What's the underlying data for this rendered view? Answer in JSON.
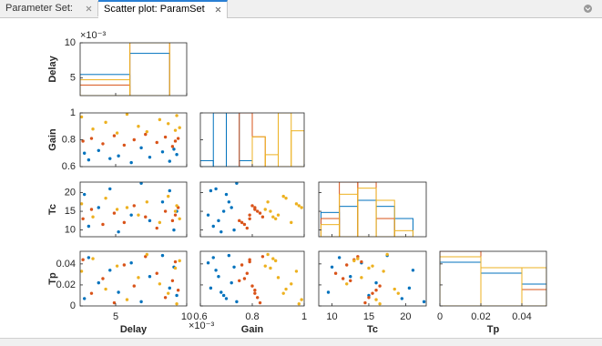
{
  "tabs": [
    "Parameter Set:",
    "Scatter plot: ParamSet"
  ],
  "chart_data": {
    "type": "scatter-matrix",
    "variables": [
      {
        "label": "Delay",
        "lim": [
          0.0025,
          0.01
        ],
        "ticks": [
          {
            "value": 0.005,
            "label": "5"
          },
          {
            "value": 0.01,
            "label": "10"
          }
        ],
        "exponent": "×10⁻³",
        "hist": {
          "bins": [
            0.0025,
            0.006,
            0.0088
          ],
          "counts": [
            [
              4,
              8
            ],
            [
              2,
              10
            ],
            [
              3,
              10
            ]
          ]
        }
      },
      {
        "label": "Gain",
        "lim": [
          0.6,
          1
        ],
        "ticks": [
          0.6,
          0.8,
          1
        ],
        "hist": {
          "bins": [
            0.6,
            0.65,
            0.7,
            0.75,
            0.8,
            0.85,
            0.9,
            0.95,
            1
          ],
          "counts": [
            [
              1,
              9,
              9,
              1,
              0,
              0,
              0,
              0
            ],
            [
              0,
              0,
              0,
              9,
              5,
              0,
              0,
              0
            ],
            [
              0,
              0,
              0,
              0,
              5,
              2,
              9,
              6
            ]
          ]
        }
      },
      {
        "label": "Tc",
        "lim": [
          8.2,
          22.8
        ],
        "ticks": [
          10,
          15,
          20
        ],
        "hist": {
          "bins": [
            8.5,
            11,
            13.5,
            16,
            18.5,
            21
          ],
          "counts": [
            [
              4,
              5,
              6,
              5,
              3
            ],
            [
              3,
              9,
              9,
              3,
              0
            ],
            [
              2,
              7,
              8,
              6,
              1
            ]
          ]
        }
      },
      {
        "label": "Tp",
        "lim": [
          0,
          0.052
        ],
        "ticks": [
          0,
          0.02,
          0.04
        ],
        "hist": {
          "bins": [
            0,
            0.02,
            0.04,
            0.052
          ],
          "counts": [
            [
              8,
              6,
              4
            ],
            [
              10,
              7,
              3
            ],
            [
              9,
              7,
              7
            ]
          ]
        }
      }
    ],
    "series": [
      {
        "color": "#0072BD",
        "values": [
          [
            0.0028,
            0.0031,
            0.0038,
            0.0046,
            0.0052,
            0.0061,
            0.0068,
            0.0074,
            0.0083,
            0.0088,
            0.0091,
            0.0093
          ],
          [
            0.7,
            0.65,
            0.72,
            0.66,
            0.68,
            0.63,
            0.74,
            0.67,
            0.71,
            0.64,
            0.73,
            0.69
          ],
          [
            19.5,
            11,
            16,
            21,
            9.5,
            14,
            22.5,
            12.5,
            17.5,
            20.5,
            10,
            15
          ],
          [
            0.007,
            0.046,
            0.022,
            0.034,
            0.013,
            0.041,
            0.004,
            0.028,
            0.048,
            0.017,
            0.037,
            0.01
          ]
        ]
      },
      {
        "color": "#D95319",
        "values": [
          [
            0.0027,
            0.0033,
            0.0041,
            0.0049,
            0.0056,
            0.0063,
            0.0071,
            0.0079,
            0.0085,
            0.009,
            0.0092,
            0.0094
          ],
          [
            0.79,
            0.81,
            0.77,
            0.83,
            0.76,
            0.8,
            0.84,
            0.78,
            0.82,
            0.75,
            0.79,
            0.81
          ],
          [
            13,
            15.5,
            11.5,
            14.5,
            12,
            16.5,
            13.5,
            10.5,
            15,
            12.5,
            14,
            16
          ],
          [
            0.044,
            0.012,
            0.026,
            0.003,
            0.039,
            0.019,
            0.047,
            0.031,
            0.008,
            0.024,
            0.042,
            0.015
          ]
        ]
      },
      {
        "color": "#EDB120",
        "values": [
          [
            0.0026,
            0.0034,
            0.0043,
            0.0051,
            0.0058,
            0.0066,
            0.0072,
            0.0081,
            0.0087,
            0.0092,
            0.0093,
            0.0095
          ],
          [
            0.97,
            0.88,
            0.93,
            0.85,
            0.99,
            0.9,
            0.86,
            0.95,
            0.92,
            0.87,
            0.98,
            0.89
          ],
          [
            17,
            13.5,
            18.5,
            15.5,
            16,
            14,
            17.5,
            12,
            19,
            15,
            16.5,
            13
          ],
          [
            0.033,
            0.045,
            0.016,
            0.038,
            0.006,
            0.027,
            0.049,
            0.021,
            0.012,
            0.036,
            0.002,
            0.043
          ]
        ]
      }
    ]
  }
}
